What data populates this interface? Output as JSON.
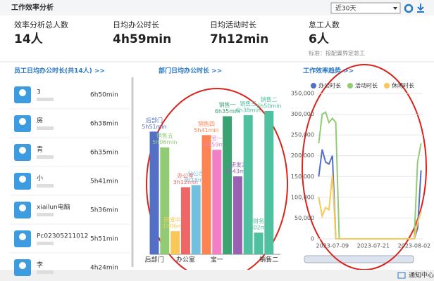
{
  "header": {
    "title": "工作效率分析",
    "range": "近30天"
  },
  "stats": [
    {
      "label": "效率分析总人数",
      "value": "14人"
    },
    {
      "label": "日均办公时长",
      "value": "4h59min"
    },
    {
      "label": "日均活动时长",
      "value": "7h12min"
    },
    {
      "label": "怠工人数",
      "value": "6人"
    }
  ],
  "note": "标准：按配置界定怠工",
  "employees": {
    "title": "员工日均办公时长(共14人) >>",
    "rows": [
      {
        "name": "3",
        "time": "6h50min"
      },
      {
        "name": "房",
        "time": "6h38min"
      },
      {
        "name": "青",
        "time": "6h35min"
      },
      {
        "name": "小",
        "time": "5h41min"
      },
      {
        "name": "xiailun电脑",
        "time": "5h36min"
      },
      {
        "name": "Pc02305211012",
        "time": "5h51min"
      },
      {
        "name": "李",
        "time": "4h24min"
      }
    ]
  },
  "chart_data": [
    {
      "type": "bar",
      "title": "部门日均办公时长 >>",
      "categories": [
        "后部门",
        "销售五",
        "研发中心",
        "办公室",
        "分公司",
        "销售四",
        "宝一",
        "销售一",
        "研发2",
        "销售三",
        "财务",
        "销售二"
      ],
      "values": [
        351,
        306,
        66,
        192,
        198,
        341,
        299,
        395,
        223,
        398,
        62,
        410
      ],
      "value_labels": [
        "5h51min",
        "5h06min",
        "1h06min",
        "3h12min",
        "3h18min",
        "5h41min",
        "4h59min",
        "6h35min",
        "3h43min",
        "6h38min",
        "1h02min",
        "6h50min"
      ],
      "colors": [
        "#5470c6",
        "#91cc75",
        "#fac858",
        "#ee6666",
        "#73c0de",
        "#fc8452",
        "#f27ec6",
        "#3ba272",
        "#9a60b4",
        "#4fc1a0",
        "#4fc1a0",
        "#4fc1a0"
      ],
      "axis_labels": [
        "后部门",
        "办公室",
        "宝一",
        "销售二"
      ]
    },
    {
      "type": "line",
      "title": "工作效率趋势 >>",
      "categories": [
        null,
        null,
        null,
        null,
        "2023-07-09",
        null,
        null,
        null,
        null,
        null,
        null,
        null,
        null,
        null,
        null,
        null,
        "2023-07-21",
        null,
        null,
        null,
        null,
        null,
        null,
        null,
        null,
        null,
        null,
        null,
        "2023-08-02",
        null,
        null
      ],
      "series": [
        {
          "name": "办公时长",
          "color": "#5470c6",
          "values": [
            150000,
            215000,
            185000,
            180000,
            200000,
            0,
            0,
            0,
            0,
            0,
            0,
            0,
            0,
            0,
            0,
            0,
            0,
            0,
            0,
            0,
            0,
            0,
            0,
            0,
            0,
            0,
            0,
            0,
            0,
            25000,
            165000
          ]
        },
        {
          "name": "活动时长",
          "color": "#91cc75",
          "values": [
            230000,
            300000,
            305000,
            280000,
            290000,
            280000,
            0,
            0,
            0,
            0,
            0,
            0,
            0,
            0,
            0,
            0,
            0,
            0,
            0,
            0,
            0,
            0,
            0,
            0,
            0,
            0,
            0,
            0,
            0,
            185000,
            230000
          ]
        },
        {
          "name": "休闲时长",
          "color": "#fac858",
          "values": [
            100000,
            55000,
            75000,
            70000,
            155000,
            0,
            0,
            0,
            0,
            0,
            0,
            0,
            0,
            0,
            0,
            0,
            0,
            0,
            0,
            0,
            0,
            0,
            0,
            0,
            0,
            0,
            0,
            0,
            0,
            40000,
            65000
          ]
        }
      ],
      "ylim": [
        0,
        350000
      ],
      "yticks": [
        0,
        {
          "value": 50000,
          "label": "50,000"
        },
        {
          "value": 100000,
          "label": "100,000"
        },
        {
          "value": 150000,
          "label": "150,000"
        },
        {
          "value": 200000,
          "label": "200,000"
        },
        {
          "value": 250000,
          "label": "250,000"
        },
        {
          "value": 300000,
          "label": "300,000"
        },
        {
          "value": 350000,
          "label": "350,000"
        }
      ],
      "grid": true,
      "legend": "top"
    }
  ],
  "footer": "通知中心"
}
